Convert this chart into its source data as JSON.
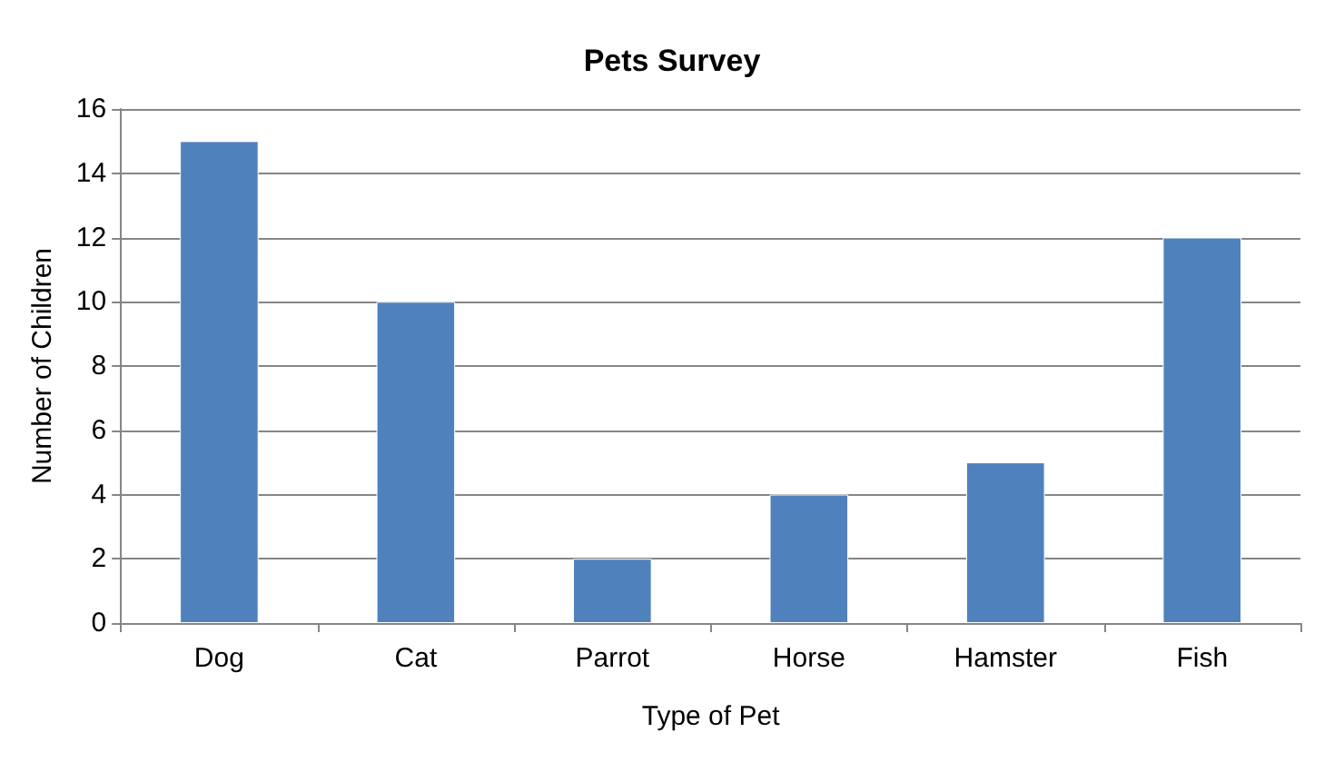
{
  "chart_data": {
    "type": "bar",
    "title": "Pets Survey",
    "xlabel": "Type of Pet",
    "ylabel": "Number of Children",
    "categories": [
      "Dog",
      "Cat",
      "Parrot",
      "Horse",
      "Hamster",
      "Fish"
    ],
    "values": [
      15,
      10,
      2,
      4,
      5,
      12
    ],
    "color": "#4f81bd",
    "ylim": [
      0,
      16
    ],
    "yticks": [
      0,
      2,
      4,
      6,
      8,
      10,
      12,
      14,
      16
    ],
    "grid": "y"
  }
}
